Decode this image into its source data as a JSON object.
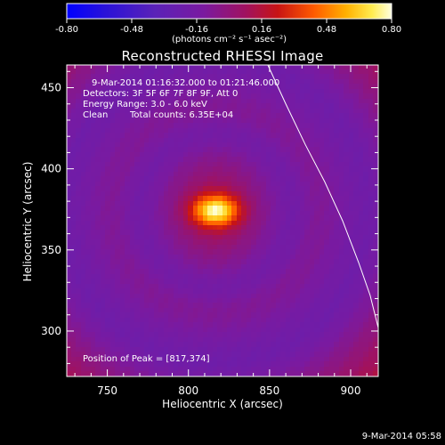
{
  "title": "Reconstructed RHESSI Image",
  "colorbar": {
    "ticks": [
      "-0.80",
      "-0.48",
      "-0.16",
      "0.16",
      "0.48",
      "0.80"
    ],
    "tick_values": [
      -0.8,
      -0.48,
      -0.16,
      0.16,
      0.48,
      0.8
    ],
    "range": [
      -0.8,
      0.8
    ],
    "unit_label": "(photons cm⁻² s⁻¹ asec⁻²)"
  },
  "info": {
    "time_range": "9-Mar-2014 01:16:32.000 to 01:21:46.000",
    "detectors": "Detectors: 3F 5F 6F 7F 8F 9F, Att 0",
    "energy": "Energy Range: 3.0 - 6.0 keV",
    "algorithm": "Clean",
    "counts": "Total counts: 6.35E+04",
    "peak": "Position of Peak = [817,374]"
  },
  "footer": {
    "timestamp": "9-Mar-2014 05:58"
  },
  "chart_data": {
    "type": "heatmap",
    "title": "Reconstructed RHESSI Image",
    "xlabel": "Heliocentric X (arcsec)",
    "ylabel": "Heliocentric Y (arcsec)",
    "xlim": [
      725,
      917
    ],
    "ylim": [
      272,
      464
    ],
    "x_ticks": [
      750,
      800,
      850,
      900
    ],
    "y_ticks": [
      300,
      350,
      400,
      450
    ],
    "x_tick_labels": [
      "750",
      "800",
      "850",
      "900"
    ],
    "y_tick_labels": [
      "300",
      "350",
      "400",
      "450"
    ],
    "peak": [
      817,
      374
    ],
    "limb_curve": [
      [
        848,
        466
      ],
      [
        860,
        440
      ],
      [
        872,
        415
      ],
      [
        884,
        392
      ],
      [
        895,
        368
      ],
      [
        905,
        342
      ],
      [
        912,
        322
      ],
      [
        917,
        302
      ]
    ]
  }
}
